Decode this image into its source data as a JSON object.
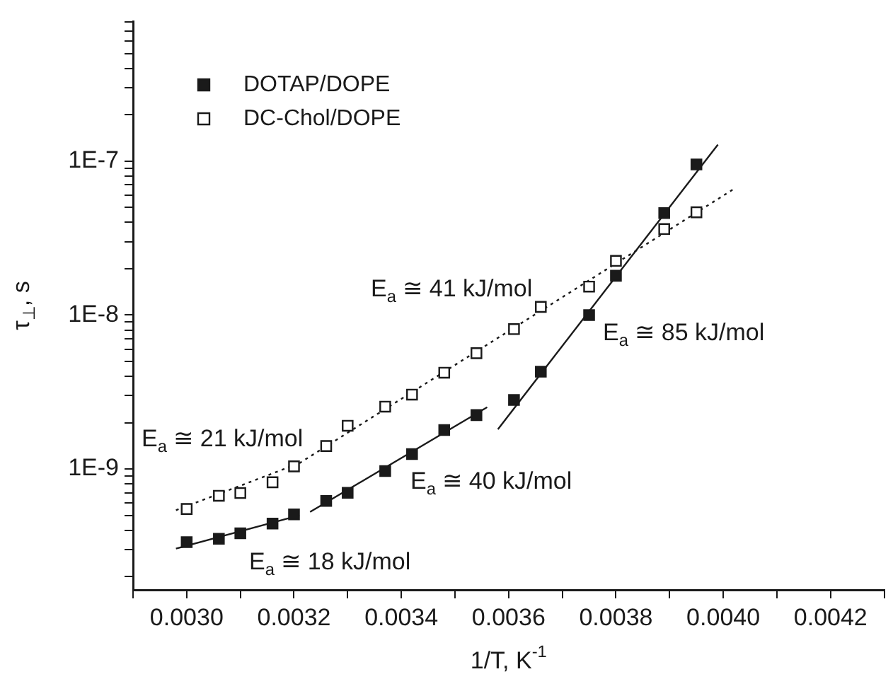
{
  "chart_data": {
    "type": "scatter",
    "xlabel": "1/T, K$^{-1}$",
    "ylabel": "τ$_{⊥}$, s",
    "log": "y",
    "legend": "top left",
    "grid": false,
    "xlim": [
      0.0029,
      0.0043
    ],
    "xticks": [
      {
        "value": 0.0029,
        "label": null
      },
      {
        "value": 0.003,
        "label": "0.0030"
      },
      {
        "value": 0.0031,
        "label": null
      },
      {
        "value": 0.0032,
        "label": "0.0032"
      },
      {
        "value": 0.0033,
        "label": null
      },
      {
        "value": 0.0034,
        "label": "0.0034"
      },
      {
        "value": 0.0035,
        "label": null
      },
      {
        "value": 0.0036,
        "label": "0.0036"
      },
      {
        "value": 0.0037,
        "label": null
      },
      {
        "value": 0.0038,
        "label": "0.0038"
      },
      {
        "value": 0.0039,
        "label": null
      },
      {
        "value": 0.004,
        "label": "0.0040"
      },
      {
        "value": 0.0041,
        "label": null
      },
      {
        "value": 0.0042,
        "label": "0.0042"
      },
      {
        "value": 0.0043,
        "label": null
      }
    ],
    "ylim": [
      1.64e-10,
      8.1e-07
    ],
    "yticks": [
      {
        "value": 2e-10,
        "label": null
      },
      {
        "value": 3e-10,
        "label": null
      },
      {
        "value": 4e-10,
        "label": null
      },
      {
        "value": 5e-10,
        "label": null
      },
      {
        "value": 6e-10,
        "label": null
      },
      {
        "value": 7e-10,
        "label": null
      },
      {
        "value": 8e-10,
        "label": null
      },
      {
        "value": 9e-10,
        "label": null
      },
      {
        "value": 1e-09,
        "label": "1E-9"
      },
      {
        "value": 2e-09,
        "label": null
      },
      {
        "value": 3e-09,
        "label": null
      },
      {
        "value": 4e-09,
        "label": null
      },
      {
        "value": 5e-09,
        "label": null
      },
      {
        "value": 6e-09,
        "label": null
      },
      {
        "value": 7e-09,
        "label": null
      },
      {
        "value": 8e-09,
        "label": null
      },
      {
        "value": 9e-09,
        "label": null
      },
      {
        "value": 1e-08,
        "label": "1E-8"
      },
      {
        "value": 2e-08,
        "label": null
      },
      {
        "value": 3e-08,
        "label": null
      },
      {
        "value": 4e-08,
        "label": null
      },
      {
        "value": 5e-08,
        "label": null
      },
      {
        "value": 6e-08,
        "label": null
      },
      {
        "value": 7e-08,
        "label": null
      },
      {
        "value": 8e-08,
        "label": null
      },
      {
        "value": 9e-08,
        "label": null
      },
      {
        "value": 1e-07,
        "label": "1E-7"
      },
      {
        "value": 2e-07,
        "label": null
      },
      {
        "value": 3e-07,
        "label": null
      },
      {
        "value": 4e-07,
        "label": null
      },
      {
        "value": 5e-07,
        "label": null
      },
      {
        "value": 6e-07,
        "label": null
      },
      {
        "value": 7e-07,
        "label": null
      },
      {
        "value": 8e-07,
        "label": null
      }
    ],
    "series": [
      {
        "name": "DOTAP/DOPE",
        "color": "#1a1a1a",
        "marker": "square",
        "x": [
          0.003,
          0.00306,
          0.0031,
          0.00316,
          0.0032,
          0.00326,
          0.0033,
          0.00337,
          0.00342,
          0.00348,
          0.00354,
          0.00361,
          0.00366,
          0.00375,
          0.0038,
          0.00389,
          0.00395
        ],
        "values": [
          3.35e-10,
          3.52e-10,
          3.82e-10,
          4.42e-10,
          5.07e-10,
          6.2e-10,
          7e-10,
          9.7e-10,
          1.25e-09,
          1.79e-09,
          2.24e-09,
          2.81e-09,
          4.29e-09,
          1e-08,
          1.8e-08,
          4.6e-08,
          9.5e-08
        ]
      },
      {
        "name": "DC-Chol/DOPE",
        "color": "#ffffff",
        "marker": "square",
        "x": [
          0.003,
          0.00306,
          0.0031,
          0.00316,
          0.0032,
          0.00326,
          0.0033,
          0.00337,
          0.00342,
          0.00348,
          0.00354,
          0.00361,
          0.00366,
          0.00375,
          0.0038,
          0.00389,
          0.00395
        ],
        "values": [
          5.5e-10,
          6.7e-10,
          6.98e-10,
          8.2e-10,
          1.04e-09,
          1.41e-09,
          1.91e-09,
          2.54e-09,
          3.04e-09,
          4.22e-09,
          5.65e-09,
          8.1e-09,
          1.13e-08,
          1.53e-08,
          2.25e-08,
          3.62e-08,
          4.65e-08
        ]
      },
      {
        "type": "line",
        "color": "#1a1a1a",
        "line_style": "solid",
        "x": [
          0.00298,
          0.00321
        ],
        "values": [
          3.04e-10,
          5e-10
        ]
      },
      {
        "type": "line",
        "color": "#1a1a1a",
        "line_style": "solid",
        "x": [
          0.00323,
          0.00356
        ],
        "values": [
          5.26e-10,
          2.52e-09
        ]
      },
      {
        "type": "line",
        "color": "#1a1a1a",
        "line_style": "solid",
        "x": [
          0.00358,
          0.00399
        ],
        "values": [
          1.81e-09,
          1.28e-07
        ]
      },
      {
        "type": "line",
        "color": "#1a1a1a",
        "line_style": "dotted",
        "x": [
          0.00298,
          0.00321
        ],
        "values": [
          5.4e-10,
          1.09e-09
        ]
      },
      {
        "type": "line",
        "color": "#1a1a1a",
        "line_style": "dotted",
        "x": [
          0.00321,
          0.00402
        ],
        "values": [
          1.09e-09,
          6.6e-08
        ]
      }
    ],
    "annotations": [
      "E$_{a}$ ≅ 41 kJ/mol",
      "E$_{a}$ ≅ 85 kJ/mol",
      "E$_{a}$ ≅ 21 kJ/mol",
      "E$_{a}$ ≅ 40 kJ/mol",
      "E$_{a}$ ≅ 18 kJ/mol"
    ]
  }
}
